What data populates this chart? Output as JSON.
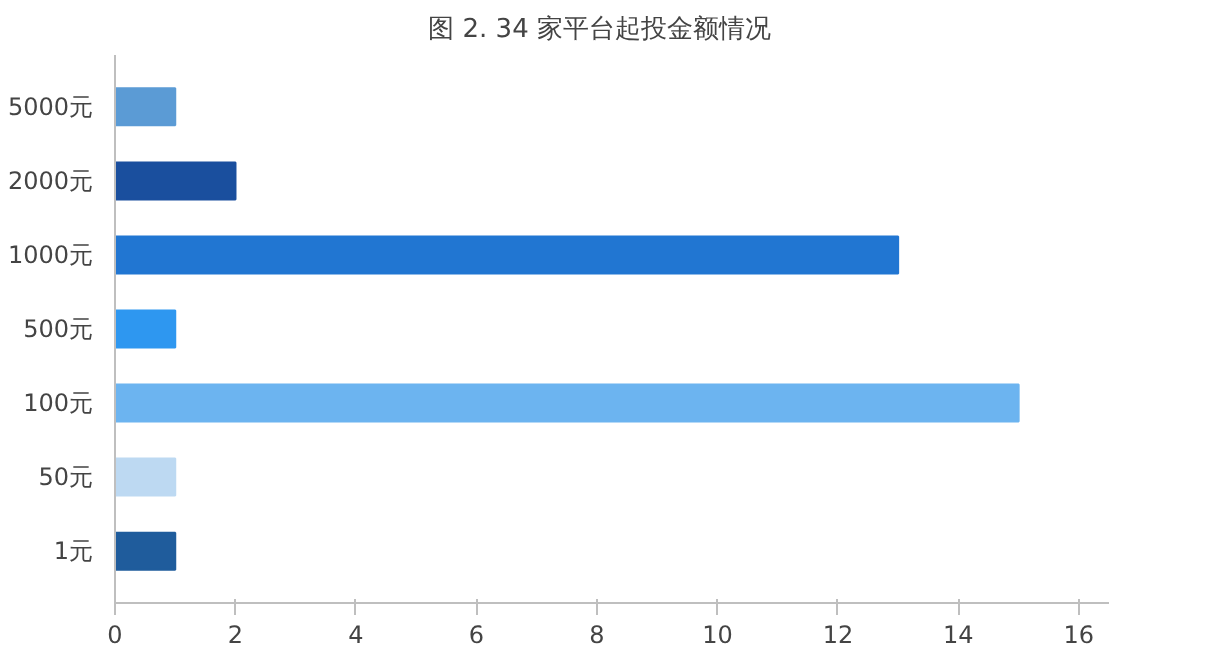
{
  "chart_data": {
    "type": "bar",
    "orientation": "horizontal",
    "title": "图 2.    34 家平台起投金额情况",
    "categories": [
      "5000元",
      "2000元",
      "1000元",
      "500元",
      "100元",
      "50元",
      "1元"
    ],
    "values": [
      1,
      2,
      13,
      1,
      15,
      1,
      1
    ],
    "colors": [
      "#5b9bd5",
      "#1a4f9e",
      "#2176d2",
      "#2e97f0",
      "#6cb4f0",
      "#bdd9f2",
      "#1f5c9c"
    ],
    "xlim": [
      0,
      16.5
    ],
    "xticks": [
      0,
      2,
      4,
      6,
      8,
      10,
      12,
      14,
      16
    ],
    "grid": false
  }
}
